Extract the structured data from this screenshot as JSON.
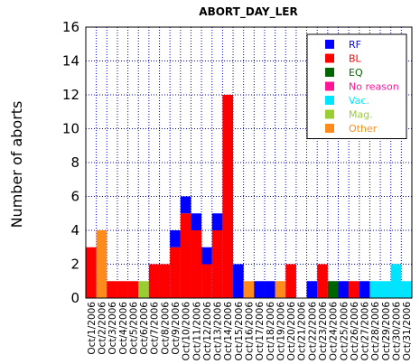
{
  "chart_data": {
    "type": "bar",
    "stacked": true,
    "title": "ABORT_DAY_LER",
    "xlabel": "",
    "ylabel": "Number of aborts",
    "ylim": [
      0,
      16
    ],
    "yticks": [
      0,
      2,
      4,
      6,
      8,
      10,
      12,
      14,
      16
    ],
    "grid": true,
    "legend_position": "top-right",
    "categories": [
      "Oct/1/2006",
      "Oct/2/2006",
      "Oct/3/2006",
      "Oct/4/2006",
      "Oct/5/2006",
      "Oct/6/2006",
      "Oct/7/2006",
      "Oct/8/2006",
      "Oct/9/2006",
      "Oct/10/2006",
      "Oct/11/2006",
      "Oct/12/2006",
      "Oct/13/2006",
      "Oct/14/2006",
      "Oct/15/2006",
      "Oct/16/2006",
      "Oct/17/2006",
      "Oct/18/2006",
      "Oct/19/2006",
      "Oct/20/2006",
      "Oct/21/2006",
      "Oct/22/2006",
      "Oct/23/2006",
      "Oct/24/2006",
      "Oct/25/2006",
      "Oct/26/2006",
      "Oct/27/2006",
      "Oct/28/2006",
      "Oct/29/2006",
      "Oct/30/2006",
      "Oct/31/2006"
    ],
    "series": [
      {
        "name": "RF",
        "color": "#0000ff",
        "values": [
          0,
          0,
          0,
          0,
          0,
          0,
          0,
          0,
          1,
          1,
          1,
          1,
          1,
          0,
          2,
          0,
          1,
          1,
          0,
          0,
          0,
          1,
          0,
          0,
          1,
          0,
          1,
          0,
          0,
          0,
          0
        ]
      },
      {
        "name": "BL",
        "color": "#ff0000",
        "values": [
          3,
          0,
          1,
          1,
          1,
          0,
          2,
          2,
          3,
          5,
          4,
          2,
          4,
          12,
          0,
          0,
          0,
          0,
          0,
          2,
          0,
          0,
          2,
          0,
          0,
          1,
          0,
          0,
          0,
          0,
          0
        ]
      },
      {
        "name": "EQ",
        "color": "#006400",
        "values": [
          0,
          0,
          0,
          0,
          0,
          0,
          0,
          0,
          0,
          0,
          0,
          0,
          0,
          0,
          0,
          0,
          0,
          0,
          0,
          0,
          0,
          0,
          0,
          1,
          0,
          0,
          0,
          0,
          0,
          0,
          0
        ]
      },
      {
        "name": "No reason",
        "color": "#ff1493",
        "values": [
          0,
          0,
          0,
          0,
          0,
          0,
          0,
          0,
          0,
          0,
          0,
          0,
          0,
          0,
          0,
          0,
          0,
          0,
          0,
          0,
          0,
          0,
          0,
          0,
          0,
          0,
          0,
          0,
          0,
          0,
          0
        ]
      },
      {
        "name": "Vac.",
        "color": "#00e5ff",
        "values": [
          0,
          0,
          0,
          0,
          0,
          0,
          0,
          0,
          0,
          0,
          0,
          0,
          0,
          0,
          0,
          0,
          0,
          0,
          0,
          0,
          0,
          0,
          0,
          0,
          0,
          0,
          0,
          1,
          1,
          2,
          1
        ]
      },
      {
        "name": "Mag.",
        "color": "#9acd32",
        "values": [
          0,
          0,
          0,
          0,
          0,
          1,
          0,
          0,
          0,
          0,
          0,
          0,
          0,
          0,
          0,
          0,
          0,
          0,
          0,
          0,
          0,
          0,
          0,
          0,
          0,
          0,
          0,
          0,
          0,
          0,
          0
        ]
      },
      {
        "name": "Other",
        "color": "#ff8c1a",
        "values": [
          0,
          4,
          0,
          0,
          0,
          0,
          0,
          0,
          0,
          0,
          0,
          0,
          0,
          0,
          0,
          1,
          0,
          0,
          1,
          0,
          0,
          0,
          0,
          0,
          0,
          0,
          0,
          0,
          0,
          0,
          0
        ]
      }
    ]
  }
}
